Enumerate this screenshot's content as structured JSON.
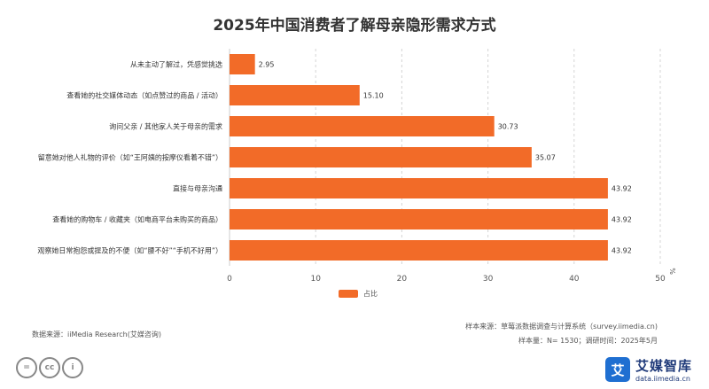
{
  "chart_data": {
    "type": "bar",
    "orientation": "horizontal",
    "title": "2025年中国消费者了解母亲隐形需求方式",
    "categories": [
      "从未主动了解过，凭感觉挑选",
      "查看她的社交媒体动态（如点赞过的商品 / 活动）",
      "询问父亲 / 其他家人关于母亲的需求",
      "留意她对他人礼物的评价（如“王阿姨的按摩仪看着不错”）",
      "直接与母亲沟通",
      "查看她的购物车 / 收藏夹（如电商平台未购买的商品）",
      "观察她日常抱怨或提及的不便（如“腰不好”“手机不好用”）"
    ],
    "series": [
      {
        "name": "占比",
        "values": [
          2.95,
          15.1,
          30.73,
          35.07,
          43.92,
          43.92,
          43.92
        ]
      }
    ],
    "value_labels": [
      "2.95",
      "15.10",
      "30.73",
      "35.07",
      "43.92",
      "43.92",
      "43.92"
    ],
    "xlim": [
      0,
      50
    ],
    "xticks": [
      "0",
      "10",
      "20",
      "30",
      "40",
      "50"
    ],
    "xunit": "%",
    "grid": true,
    "legend_position": "bottom-center",
    "bar_color": "#f26b28"
  },
  "footer": {
    "data_source": "数据来源：iiMedia Research(艾媒咨询)",
    "sample_source": "样本来源：草莓派数据调查与计算系统（survey.iimedia.cn)",
    "sample_info": "样本量：N= 1530；调研时间：2025年5月"
  },
  "brand": {
    "name": "艾媒智库",
    "url": "data.iimedia.cn",
    "icon_char": "艾"
  },
  "license_icons": [
    "=",
    "cc",
    "i"
  ]
}
